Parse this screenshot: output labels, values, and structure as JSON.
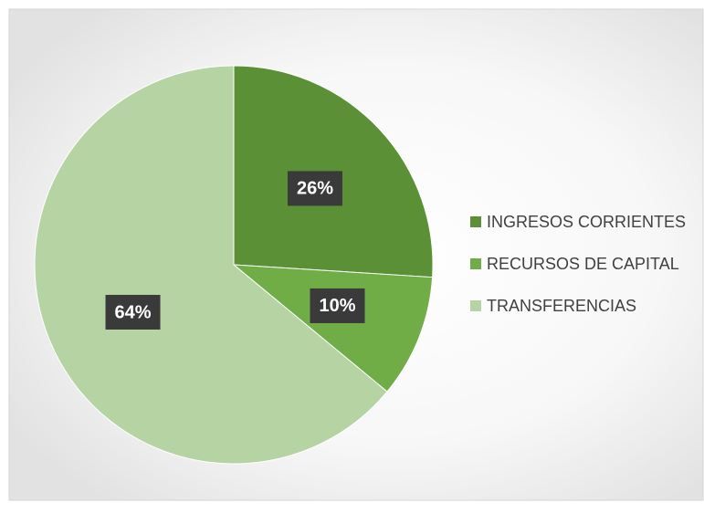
{
  "chart_data": {
    "type": "pie",
    "categories": [
      "INGRESOS CORRIENTES",
      "RECURSOS DE CAPITAL",
      "TRANSFERENCIAS"
    ],
    "values": [
      26,
      10,
      64
    ],
    "value_labels": [
      "26%",
      "10%",
      "64%"
    ],
    "colors": [
      "#5b9036",
      "#70ad47",
      "#b6d3a4"
    ],
    "legend": "right"
  }
}
